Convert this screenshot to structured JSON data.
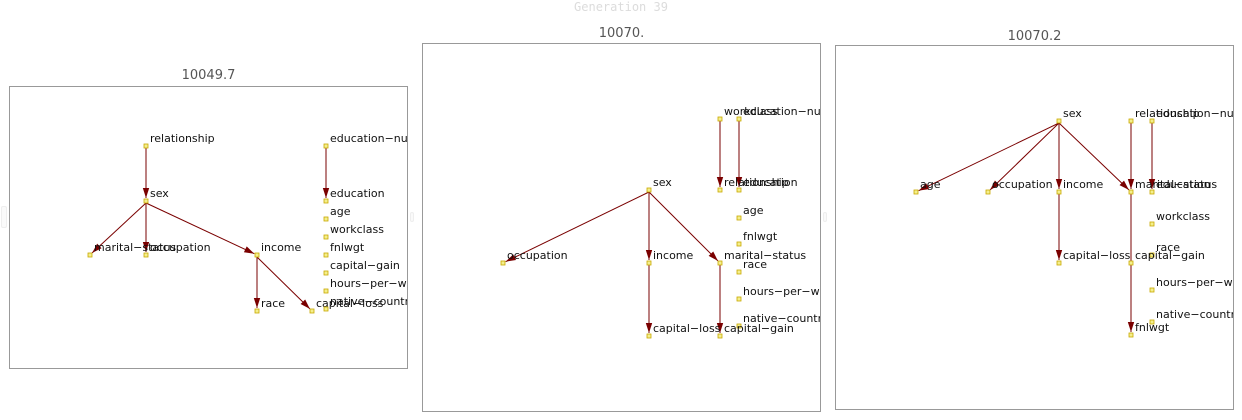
{
  "title": "Generation 39",
  "colors": {
    "edge": "#7a0000",
    "node_fill": "#f4ef8c",
    "node_stroke": "#c9a800",
    "border": "#999999"
  },
  "panels": [
    {
      "score": "10049.7",
      "nodes": [
        {
          "id": "relationship",
          "label": "relationship"
        },
        {
          "id": "education-num",
          "label": "education−num"
        },
        {
          "id": "sex",
          "label": "sex"
        },
        {
          "id": "education",
          "label": "education"
        },
        {
          "id": "age",
          "label": "age"
        },
        {
          "id": "workclass",
          "label": "workclass"
        },
        {
          "id": "marital-status",
          "label": "marital−status"
        },
        {
          "id": "occupation",
          "label": "occupation"
        },
        {
          "id": "income",
          "label": "income"
        },
        {
          "id": "fnlwgt",
          "label": "fnlwgt"
        },
        {
          "id": "capital-gain",
          "label": "capital−gain"
        },
        {
          "id": "hours-per-week",
          "label": "hours−per−week"
        },
        {
          "id": "race",
          "label": "race"
        },
        {
          "id": "capital-loss",
          "label": "capital−loss"
        },
        {
          "id": "native-country",
          "label": "native−country"
        }
      ],
      "edges": [
        [
          "relationship",
          "sex"
        ],
        [
          "education-num",
          "education"
        ],
        [
          "sex",
          "marital-status"
        ],
        [
          "sex",
          "occupation"
        ],
        [
          "sex",
          "income"
        ],
        [
          "income",
          "race"
        ],
        [
          "income",
          "capital-loss"
        ]
      ]
    },
    {
      "score": "10070.",
      "nodes": [
        {
          "id": "workclass",
          "label": "workclass"
        },
        {
          "id": "education-num",
          "label": "education−num"
        },
        {
          "id": "sex",
          "label": "sex"
        },
        {
          "id": "relationship",
          "label": "relationship"
        },
        {
          "id": "education",
          "label": "education"
        },
        {
          "id": "age",
          "label": "age"
        },
        {
          "id": "fnlwgt",
          "label": "fnlwgt"
        },
        {
          "id": "occupation",
          "label": "occupation"
        },
        {
          "id": "income",
          "label": "income"
        },
        {
          "id": "marital-status",
          "label": "marital−status"
        },
        {
          "id": "race",
          "label": "race"
        },
        {
          "id": "hours-per-week",
          "label": "hours−per−week"
        },
        {
          "id": "native-country",
          "label": "native−country"
        },
        {
          "id": "capital-loss",
          "label": "capital−loss"
        },
        {
          "id": "capital-gain",
          "label": "capital−gain"
        }
      ],
      "edges": [
        [
          "workclass",
          "relationship"
        ],
        [
          "education-num",
          "education"
        ],
        [
          "sex",
          "occupation"
        ],
        [
          "sex",
          "income"
        ],
        [
          "sex",
          "marital-status"
        ],
        [
          "income",
          "capital-loss"
        ],
        [
          "marital-status",
          "capital-gain"
        ]
      ]
    },
    {
      "score": "10070.2",
      "nodes": [
        {
          "id": "sex",
          "label": "sex"
        },
        {
          "id": "relationship",
          "label": "relationship"
        },
        {
          "id": "education-num",
          "label": "education−num"
        },
        {
          "id": "age",
          "label": "age"
        },
        {
          "id": "occupation",
          "label": "occupation"
        },
        {
          "id": "income",
          "label": "income"
        },
        {
          "id": "marital-status",
          "label": "marital−status"
        },
        {
          "id": "education",
          "label": "education"
        },
        {
          "id": "workclass",
          "label": "workclass"
        },
        {
          "id": "capital-loss",
          "label": "capital−loss"
        },
        {
          "id": "race",
          "label": "race"
        },
        {
          "id": "capital-gain",
          "label": "capital−gain"
        },
        {
          "id": "hours-per-week",
          "label": "hours−per−week"
        },
        {
          "id": "fnlwgt",
          "label": "fnlwgt"
        },
        {
          "id": "native-country",
          "label": "native−country"
        }
      ],
      "edges": [
        [
          "sex",
          "age"
        ],
        [
          "sex",
          "occupation"
        ],
        [
          "sex",
          "income"
        ],
        [
          "sex",
          "marital-status"
        ],
        [
          "relationship",
          "marital-status"
        ],
        [
          "education-num",
          "education"
        ],
        [
          "income",
          "capital-loss"
        ],
        [
          "marital-status",
          "fnlwgt"
        ]
      ]
    }
  ]
}
